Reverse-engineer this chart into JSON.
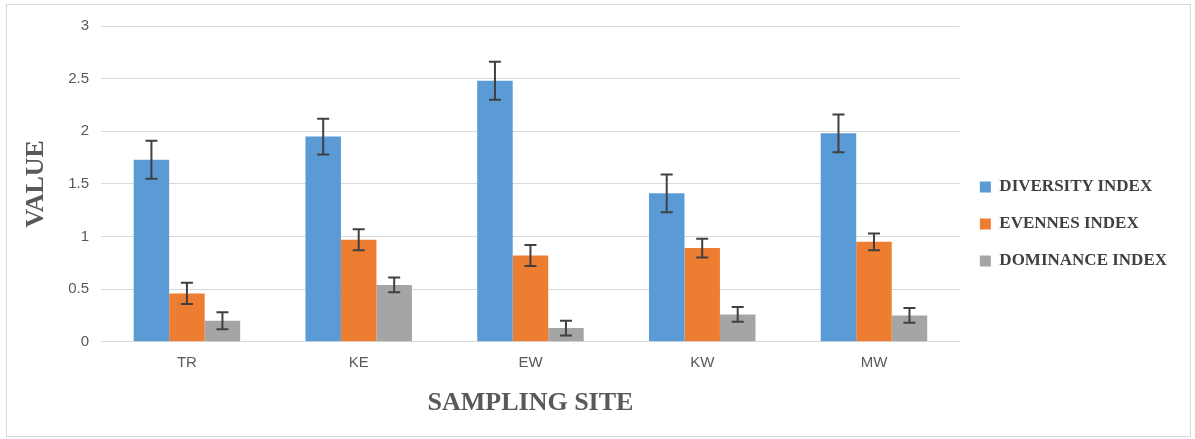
{
  "chart_data": {
    "type": "bar",
    "xlabel": "SAMPLING SITE",
    "ylabel": "VALUE",
    "categories": [
      "TR",
      "KE",
      "EW",
      "KW",
      "MW"
    ],
    "series": [
      {
        "name": "DIVERSITY INDEX",
        "color": "#5b9bd5",
        "values": [
          1.73,
          1.95,
          2.48,
          1.41,
          1.98
        ],
        "errors": [
          0.18,
          0.17,
          0.18,
          0.18,
          0.18
        ]
      },
      {
        "name": "EVENNES INDEX",
        "color": "#ed7d31",
        "values": [
          0.46,
          0.97,
          0.82,
          0.89,
          0.95
        ],
        "errors": [
          0.1,
          0.1,
          0.1,
          0.09,
          0.08
        ]
      },
      {
        "name": "DOMINANCE INDEX",
        "color": "#a5a5a5",
        "values": [
          0.2,
          0.54,
          0.13,
          0.26,
          0.25
        ],
        "errors": [
          0.08,
          0.07,
          0.07,
          0.07,
          0.07
        ]
      }
    ],
    "ylim": [
      0,
      3
    ],
    "yticks": [
      0,
      0.5,
      1,
      1.5,
      2,
      2.5,
      3
    ],
    "grid": "y",
    "legend": "right"
  }
}
